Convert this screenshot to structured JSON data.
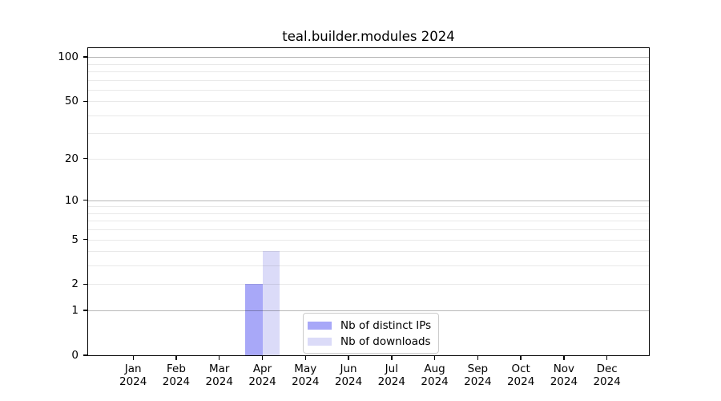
{
  "title": "teal.builder.modules 2024",
  "chart_data": {
    "type": "bar",
    "title": "teal.builder.modules 2024",
    "xlabel": "",
    "ylabel": "",
    "categories": [
      "Jan",
      "Feb",
      "Mar",
      "Apr",
      "May",
      "Jun",
      "Jul",
      "Aug",
      "Sep",
      "Oct",
      "Nov",
      "Dec"
    ],
    "year_label": "2024",
    "series": [
      {
        "name": "Nb of distinct IPs",
        "color": "#a8a8f8",
        "values": [
          0,
          0,
          0,
          2,
          0,
          0,
          0,
          0,
          0,
          0,
          0,
          0
        ]
      },
      {
        "name": "Nb of downloads",
        "color": "#dbdbf8",
        "values": [
          0,
          0,
          0,
          4,
          0,
          0,
          0,
          0,
          0,
          0,
          0,
          0
        ]
      }
    ],
    "yscale": "log1p",
    "ylim": [
      0,
      115
    ],
    "yticks": [
      0,
      1,
      2,
      5,
      10,
      20,
      50,
      100
    ],
    "minor_gridlines": [
      2,
      3,
      4,
      5,
      6,
      7,
      8,
      9,
      20,
      30,
      40,
      50,
      60,
      70,
      80,
      90
    ],
    "major_gridlines": [
      1,
      10,
      100
    ],
    "grid": true,
    "legend_position": "inside-bottom-center"
  }
}
